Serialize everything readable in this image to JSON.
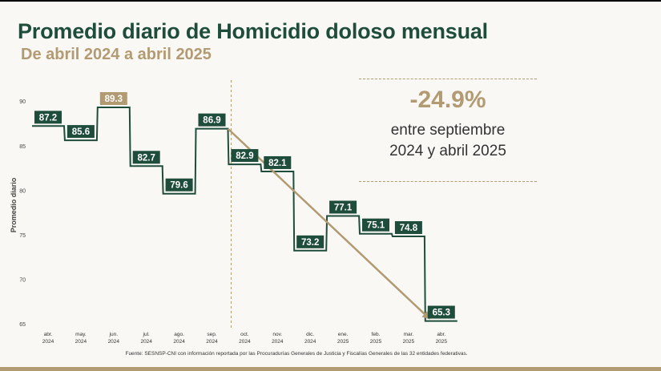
{
  "title": "Promedio diario de Homicidio doloso mensual",
  "subtitle": "De abril 2024 a abril 2025",
  "callout": {
    "percent": "-24.9%",
    "text_line1": "entre septiembre",
    "text_line2": "2024 y abril 2025"
  },
  "source": "Fuente: SESNSP-CNI con información reportada por las Procuradurías Generales de Justicia y Fiscalías Generales de las 32 entidades federativas.",
  "colors": {
    "series": "#1f4d3c",
    "highlight": "#b29a73",
    "trend_arrow": "#b29a73"
  },
  "chart_data": {
    "type": "line",
    "step": true,
    "categories": [
      [
        "abr.",
        "2024"
      ],
      [
        "may.",
        "2024"
      ],
      [
        "jun.",
        "2024"
      ],
      [
        "jul.",
        "2024"
      ],
      [
        "ago.",
        "2024"
      ],
      [
        "sep.",
        "2024"
      ],
      [
        "oct.",
        "2024"
      ],
      [
        "nov.",
        "2024"
      ],
      [
        "dic.",
        "2024"
      ],
      [
        "ene.",
        "2025"
      ],
      [
        "feb.",
        "2025"
      ],
      [
        "mar.",
        "2025"
      ],
      [
        "abr.",
        "2025"
      ]
    ],
    "values": [
      87.2,
      85.6,
      89.3,
      82.7,
      79.6,
      86.9,
      82.9,
      82.1,
      73.2,
      77.1,
      75.1,
      74.8,
      65.3
    ],
    "labels": [
      "87.2",
      "85.6",
      "89.3",
      "82.7",
      "79.6",
      "86.9",
      "82.9",
      "82.1",
      "73.2",
      "77.1",
      "75.1",
      "74.8",
      "65.3"
    ],
    "highlight_index": 2,
    "ylabel": "Promedio diario",
    "ylim": [
      64,
      92
    ],
    "yticks": [
      65,
      70,
      75,
      80,
      85,
      90
    ],
    "grid": false,
    "divider_after": "sep. 2024",
    "trend_arrow": {
      "from": "sep. 2024",
      "to": "abr. 2025"
    }
  }
}
